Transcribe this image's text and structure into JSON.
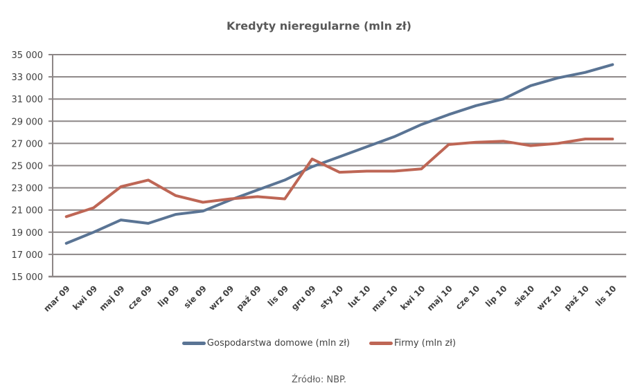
{
  "chart_data": {
    "type": "line",
    "title": "Kredyty nieregularne (mln zł)",
    "xlabel": "",
    "ylabel": "",
    "ylim": [
      15000,
      35000
    ],
    "yticks": [
      "15 000",
      "17 000",
      "19 000",
      "21 000",
      "23 000",
      "25 000",
      "27 000",
      "29 000",
      "31 000",
      "33 000",
      "35 000"
    ],
    "ytick_values": [
      15000,
      17000,
      19000,
      21000,
      23000,
      25000,
      27000,
      29000,
      31000,
      33000,
      35000
    ],
    "grid": true,
    "legend_position": "bottom",
    "categories": [
      "mar 09",
      "kwi 09",
      "maj 09",
      "cze 09",
      "lip 09",
      "sie 09",
      "wrz 09",
      "paź 09",
      "lis 09",
      "gru 09",
      "sty 10",
      "lut 10",
      "mar 10",
      "kwi 10",
      "maj 10",
      "cze 10",
      "lip 10",
      "sie10",
      "wrz 10",
      "paź 10",
      "lis 10"
    ],
    "series": [
      {
        "name": "Gospodarstwa domowe (mln zł)",
        "color": "#5A7494",
        "values": [
          18000,
          19000,
          20100,
          19800,
          20600,
          20900,
          21900,
          22800,
          23700,
          24900,
          25800,
          26700,
          27600,
          28700,
          29600,
          30400,
          31000,
          32200,
          32900,
          33400,
          34100
        ]
      },
      {
        "name": "Firmy (mln zł)",
        "color": "#BE6655",
        "values": [
          20400,
          21200,
          23100,
          23700,
          22300,
          21700,
          22000,
          22200,
          22000,
          25600,
          24400,
          24500,
          24500,
          24700,
          26900,
          27100,
          27200,
          26800,
          27000,
          27400,
          27400
        ]
      }
    ],
    "source": "Źródło: NBP."
  },
  "colors": {
    "grid": "#8C8686",
    "axis_text": "#404040",
    "title": "#595959"
  }
}
